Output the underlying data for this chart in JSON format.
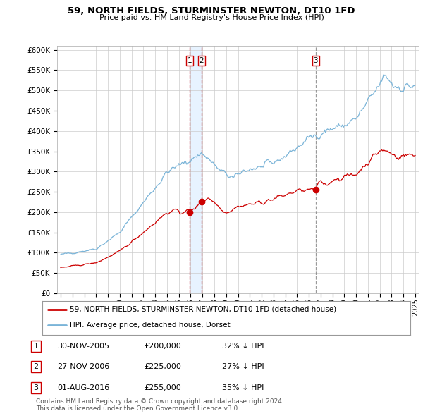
{
  "title": "59, NORTH FIELDS, STURMINSTER NEWTON, DT10 1FD",
  "subtitle": "Price paid vs. HM Land Registry's House Price Index (HPI)",
  "y_ticks": [
    0,
    50000,
    100000,
    150000,
    200000,
    250000,
    300000,
    350000,
    400000,
    450000,
    500000,
    550000,
    600000
  ],
  "y_tick_labels": [
    "£0",
    "£50K",
    "£100K",
    "£150K",
    "£200K",
    "£250K",
    "£300K",
    "£350K",
    "£400K",
    "£450K",
    "£500K",
    "£550K",
    "£600K"
  ],
  "hpi_color": "#7ab4d8",
  "price_color": "#cc0000",
  "shade_color": "#ddeeff",
  "transaction_markers": [
    {
      "year": 2005.92,
      "price": 200000,
      "label": "1",
      "line_color": "#cc0000",
      "line_style": "--"
    },
    {
      "year": 2006.92,
      "price": 225000,
      "label": "2",
      "line_color": "#cc0000",
      "line_style": "--"
    },
    {
      "year": 2016.58,
      "price": 255000,
      "label": "3",
      "line_color": "#888888",
      "line_style": "--"
    }
  ],
  "legend_house_label": "59, NORTH FIELDS, STURMINSTER NEWTON, DT10 1FD (detached house)",
  "legend_hpi_label": "HPI: Average price, detached house, Dorset",
  "table_rows": [
    {
      "num": "1",
      "date": "30-NOV-2005",
      "price": "£200,000",
      "hpi": "32% ↓ HPI"
    },
    {
      "num": "2",
      "date": "27-NOV-2006",
      "price": "£225,000",
      "hpi": "27% ↓ HPI"
    },
    {
      "num": "3",
      "date": "01-AUG-2016",
      "price": "£255,000",
      "hpi": "35% ↓ HPI"
    }
  ],
  "footnote": "Contains HM Land Registry data © Crown copyright and database right 2024.\nThis data is licensed under the Open Government Licence v3.0.",
  "background_color": "#ffffff",
  "grid_color": "#cccccc"
}
